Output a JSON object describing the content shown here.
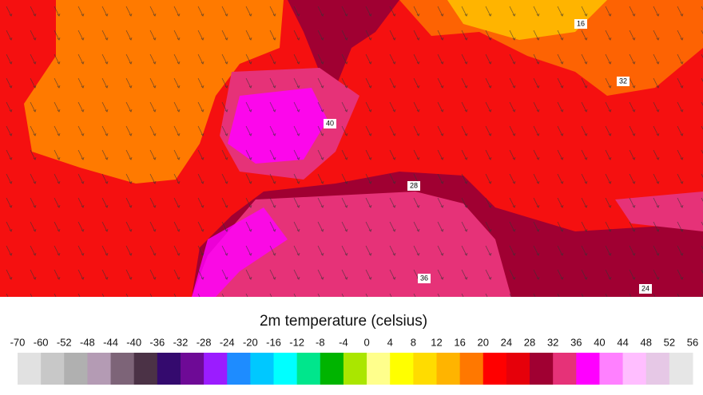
{
  "map": {
    "contour_labels": [
      "16",
      "32",
      "40",
      "28",
      "36",
      "24"
    ]
  },
  "legend": {
    "title": "2m temperature (celsius)",
    "ticks": [
      -70,
      -60,
      -52,
      -48,
      -44,
      -40,
      -36,
      -32,
      -28,
      -24,
      -20,
      -16,
      -12,
      -8,
      -4,
      0,
      4,
      8,
      12,
      16,
      20,
      24,
      28,
      32,
      36,
      40,
      44,
      48,
      52,
      56
    ],
    "colors": [
      "#e1e1e1",
      "#c8c8c8",
      "#b0b0b0",
      "#b49bb4",
      "#7d6478",
      "#4b3246",
      "#340a6e",
      "#6e0a96",
      "#9b1cff",
      "#1e8cff",
      "#00c8ff",
      "#00ffff",
      "#00e68c",
      "#00b400",
      "#aae600",
      "#ffff8c",
      "#ffff00",
      "#ffdc00",
      "#ffb400",
      "#ff7800",
      "#ff0000",
      "#e6000a",
      "#a00032",
      "#e63278",
      "#ff00ff",
      "#ff80ff",
      "#ffbeff",
      "#e6c8e6",
      "#e6e6e6"
    ]
  }
}
